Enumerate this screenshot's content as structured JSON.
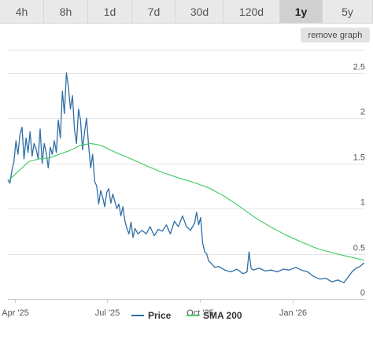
{
  "tabs": [
    {
      "label": "4h",
      "active": false
    },
    {
      "label": "8h",
      "active": false
    },
    {
      "label": "1d",
      "active": false
    },
    {
      "label": "7d",
      "active": false
    },
    {
      "label": "30d",
      "active": false
    },
    {
      "label": "120d",
      "active": false
    },
    {
      "label": "1y",
      "active": true
    },
    {
      "label": "5y",
      "active": false
    }
  ],
  "remove_graph_label": "remove graph",
  "colors": {
    "price": "#2f6ea5",
    "sma": "#4ccc6e",
    "grid": "#e6e6e6"
  },
  "chart_data": {
    "type": "line",
    "title": "",
    "xlabel": "",
    "ylabel": "",
    "ylim": [
      0,
      2.75
    ],
    "yticks": [
      {
        "value": 0,
        "label": "0"
      },
      {
        "value": 0.5,
        "label": "0.5"
      },
      {
        "value": 1,
        "label": "1"
      },
      {
        "value": 1.5,
        "label": "1.5"
      },
      {
        "value": 2,
        "label": "2"
      },
      {
        "value": 2.5,
        "label": "2.5"
      }
    ],
    "xlim": [
      "2025-03-25",
      "2026-03-14"
    ],
    "xticks": [
      {
        "date": "2025-04-01",
        "label": "Apr '25"
      },
      {
        "date": "2025-07-01",
        "label": "Jul '25"
      },
      {
        "date": "2025-10-01",
        "label": "Oct '25"
      },
      {
        "date": "2026-01-01",
        "label": "Jan '26"
      }
    ],
    "grid": true,
    "legend_position": "bottom",
    "series": [
      {
        "name": "Price",
        "x": [
          "2025-03-25",
          "2025-03-27",
          "2025-03-29",
          "2025-03-31",
          "2025-04-02",
          "2025-04-04",
          "2025-04-06",
          "2025-04-08",
          "2025-04-10",
          "2025-04-12",
          "2025-04-14",
          "2025-04-16",
          "2025-04-18",
          "2025-04-20",
          "2025-04-22",
          "2025-04-24",
          "2025-04-26",
          "2025-04-28",
          "2025-04-30",
          "2025-05-02",
          "2025-05-04",
          "2025-05-06",
          "2025-05-08",
          "2025-05-10",
          "2025-05-12",
          "2025-05-14",
          "2025-05-16",
          "2025-05-18",
          "2025-05-20",
          "2025-05-22",
          "2025-05-24",
          "2025-05-26",
          "2025-05-28",
          "2025-05-30",
          "2025-06-01",
          "2025-06-03",
          "2025-06-05",
          "2025-06-07",
          "2025-06-09",
          "2025-06-11",
          "2025-06-13",
          "2025-06-15",
          "2025-06-17",
          "2025-06-19",
          "2025-06-21",
          "2025-06-23",
          "2025-06-25",
          "2025-06-27",
          "2025-06-29",
          "2025-07-01",
          "2025-07-03",
          "2025-07-05",
          "2025-07-07",
          "2025-07-09",
          "2025-07-11",
          "2025-07-13",
          "2025-07-15",
          "2025-07-17",
          "2025-07-19",
          "2025-07-21",
          "2025-07-23",
          "2025-07-25",
          "2025-07-27",
          "2025-07-29",
          "2025-08-01",
          "2025-08-05",
          "2025-08-09",
          "2025-08-13",
          "2025-08-17",
          "2025-08-21",
          "2025-08-25",
          "2025-08-29",
          "2025-09-02",
          "2025-09-06",
          "2025-09-10",
          "2025-09-14",
          "2025-09-18",
          "2025-09-22",
          "2025-09-26",
          "2025-09-28",
          "2025-09-30",
          "2025-10-02",
          "2025-10-04",
          "2025-10-06",
          "2025-10-08",
          "2025-10-10",
          "2025-10-12",
          "2025-10-16",
          "2025-10-20",
          "2025-10-26",
          "2025-11-01",
          "2025-11-07",
          "2025-11-13",
          "2025-11-17",
          "2025-11-19",
          "2025-11-21",
          "2025-11-23",
          "2025-11-29",
          "2025-12-05",
          "2025-12-11",
          "2025-12-17",
          "2025-12-23",
          "2025-12-29",
          "2026-01-04",
          "2026-01-10",
          "2026-01-16",
          "2026-01-22",
          "2026-01-28",
          "2026-02-03",
          "2026-02-09",
          "2026-02-15",
          "2026-02-21",
          "2026-02-25",
          "2026-03-01",
          "2026-03-05",
          "2026-03-09",
          "2026-03-13"
        ],
        "y": [
          1.32,
          1.28,
          1.42,
          1.52,
          1.75,
          1.6,
          1.82,
          1.9,
          1.55,
          1.78,
          1.62,
          1.85,
          1.58,
          1.72,
          1.66,
          1.55,
          1.88,
          1.5,
          1.72,
          1.62,
          1.45,
          1.68,
          1.6,
          1.75,
          1.62,
          1.98,
          1.78,
          2.3,
          2.05,
          2.5,
          2.35,
          2.1,
          2.25,
          1.88,
          1.72,
          2.1,
          1.98,
          1.65,
          1.85,
          2.0,
          1.7,
          1.45,
          1.6,
          1.3,
          1.25,
          1.05,
          1.2,
          1.12,
          1.02,
          1.18,
          1.22,
          1.06,
          1.16,
          1.08,
          1.0,
          1.05,
          0.92,
          1.02,
          0.86,
          0.78,
          0.72,
          0.85,
          0.68,
          0.78,
          0.72,
          0.76,
          0.72,
          0.8,
          0.7,
          0.77,
          0.75,
          0.82,
          0.72,
          0.86,
          0.8,
          0.92,
          0.8,
          0.76,
          0.84,
          0.96,
          0.82,
          0.9,
          0.62,
          0.52,
          0.5,
          0.42,
          0.4,
          0.35,
          0.36,
          0.32,
          0.3,
          0.33,
          0.28,
          0.3,
          0.52,
          0.34,
          0.32,
          0.34,
          0.31,
          0.32,
          0.3,
          0.33,
          0.32,
          0.35,
          0.32,
          0.3,
          0.25,
          0.22,
          0.23,
          0.19,
          0.21,
          0.18,
          0.24,
          0.3,
          0.34,
          0.36,
          0.4
        ]
      },
      {
        "name": "SMA 200",
        "x": [
          "2025-03-25",
          "2025-04-05",
          "2025-04-15",
          "2025-04-25",
          "2025-05-05",
          "2025-05-15",
          "2025-05-25",
          "2025-06-05",
          "2025-06-15",
          "2025-06-25",
          "2025-07-10",
          "2025-07-25",
          "2025-08-10",
          "2025-08-25",
          "2025-09-10",
          "2025-09-25",
          "2025-10-10",
          "2025-10-25",
          "2025-11-10",
          "2025-11-25",
          "2025-12-10",
          "2025-12-25",
          "2026-01-10",
          "2026-01-25",
          "2026-02-10",
          "2026-02-25",
          "2026-03-13"
        ],
        "y": [
          1.3,
          1.42,
          1.52,
          1.55,
          1.56,
          1.6,
          1.64,
          1.7,
          1.72,
          1.7,
          1.62,
          1.55,
          1.47,
          1.4,
          1.34,
          1.29,
          1.23,
          1.14,
          1.02,
          0.9,
          0.8,
          0.71,
          0.63,
          0.56,
          0.51,
          0.47,
          0.43
        ]
      }
    ]
  }
}
